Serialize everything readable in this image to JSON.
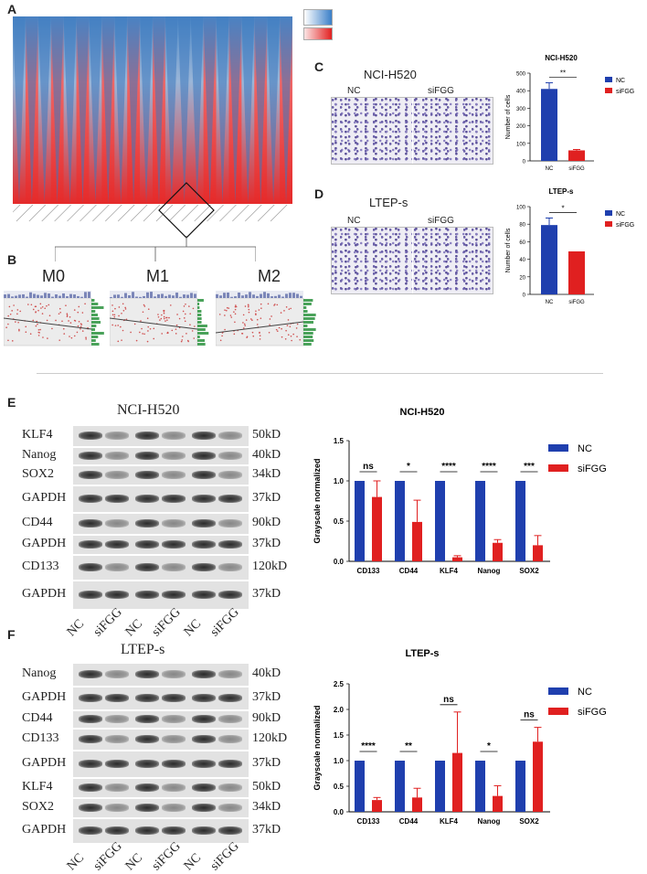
{
  "panels": {
    "A": {
      "label": "A"
    },
    "B": {
      "label": "B",
      "subplots": [
        "M0",
        "M1",
        "M2"
      ]
    },
    "C": {
      "label": "C",
      "image_title": "NCI-H520",
      "image_labels": [
        "NC",
        "siFGG"
      ],
      "chart_title": "NCI-H520",
      "sig": "**"
    },
    "D": {
      "label": "D",
      "image_title": "LTEP-s",
      "image_labels": [
        "NC",
        "siFGG"
      ],
      "chart_title": "LTEP-s",
      "sig": "*"
    },
    "E": {
      "label": "E",
      "blot_title": "NCI-H520",
      "proteins": [
        "KLF4",
        "Nanog",
        "SOX2",
        "GAPDH",
        "CD44",
        "GAPDH",
        "CD133",
        "GAPDH"
      ],
      "sizes": [
        "50kD",
        "40kD",
        "34kD",
        "37kD",
        "90kD",
        "37kD",
        "120kD",
        "37kD"
      ],
      "lanes": [
        "NC",
        "siFGG",
        "NC",
        "siFGG",
        "NC",
        "siFGG"
      ]
    },
    "F": {
      "label": "F",
      "blot_title": "LTEP-s",
      "proteins": [
        "Nanog",
        "GAPDH",
        "CD44",
        "CD133",
        "GAPDH",
        "KLF4",
        "SOX2",
        "GAPDH"
      ],
      "sizes": [
        "40kD",
        "37kD",
        "90kD",
        "120kD",
        "37kD",
        "50kD",
        "34kD",
        "37kD"
      ],
      "lanes": [
        "NC",
        "siFGG",
        "NC",
        "siFGG",
        "NC",
        "siFGG"
      ]
    }
  },
  "colors": {
    "nc": "#1f3fae",
    "sifgg": "#e02020"
  },
  "chart_data": [
    {
      "id": "C",
      "type": "bar",
      "title": "NCI-H520",
      "ylabel": "Number of cells",
      "categories": [
        "NC",
        "siFGG"
      ],
      "values": [
        410,
        60
      ],
      "errors": [
        35,
        5
      ],
      "ylim": [
        0,
        500
      ],
      "yticks": [
        "0",
        "100",
        "200",
        "300",
        "400",
        "500"
      ],
      "legend": [
        "NC",
        "siFGG"
      ],
      "significance": [
        "**"
      ]
    },
    {
      "id": "D",
      "type": "bar",
      "title": "LTEP-s",
      "ylabel": "Number of cells",
      "categories": [
        "NC",
        "siFGG"
      ],
      "values": [
        79,
        49
      ],
      "errors": [
        8,
        0
      ],
      "ylim": [
        0,
        100
      ],
      "yticks": [
        "0",
        "20",
        "40",
        "60",
        "80",
        "100"
      ],
      "legend": [
        "NC",
        "siFGG"
      ],
      "significance": [
        "*"
      ]
    },
    {
      "id": "E",
      "type": "bar",
      "title": "NCI-H520",
      "ylabel": "Grayscale normalized",
      "categories": [
        "CD133",
        "CD44",
        "KLF4",
        "Nanog",
        "SOX2"
      ],
      "series": [
        {
          "name": "NC",
          "values": [
            1.0,
            1.0,
            1.0,
            1.0,
            1.0
          ],
          "errors": [
            0,
            0,
            0,
            0,
            0
          ]
        },
        {
          "name": "siFGG",
          "values": [
            0.8,
            0.49,
            0.05,
            0.23,
            0.2
          ],
          "errors": [
            0.2,
            0.27,
            0.02,
            0.04,
            0.12
          ]
        }
      ],
      "ylim": [
        0,
        1.5
      ],
      "yticks": [
        "0.0",
        "0.5",
        "1.0",
        "1.5"
      ],
      "significance": [
        "ns",
        "*",
        "****",
        "****",
        "***"
      ]
    },
    {
      "id": "F",
      "type": "bar",
      "title": "LTEP-s",
      "ylabel": "Grayscale normalized",
      "categories": [
        "CD133",
        "CD44",
        "KLF4",
        "Nanog",
        "SOX2"
      ],
      "series": [
        {
          "name": "NC",
          "values": [
            1.0,
            1.0,
            1.0,
            1.0,
            1.0
          ],
          "errors": [
            0,
            0,
            0,
            0,
            0
          ]
        },
        {
          "name": "siFGG",
          "values": [
            0.23,
            0.28,
            1.15,
            0.31,
            1.37
          ],
          "errors": [
            0.05,
            0.18,
            0.8,
            0.2,
            0.28
          ]
        }
      ],
      "ylim": [
        0,
        2.5
      ],
      "yticks": [
        "0.0",
        "0.5",
        "1.0",
        "1.5",
        "2.0",
        "2.5"
      ],
      "significance": [
        "****",
        "**",
        "ns",
        "*",
        "ns"
      ]
    }
  ]
}
